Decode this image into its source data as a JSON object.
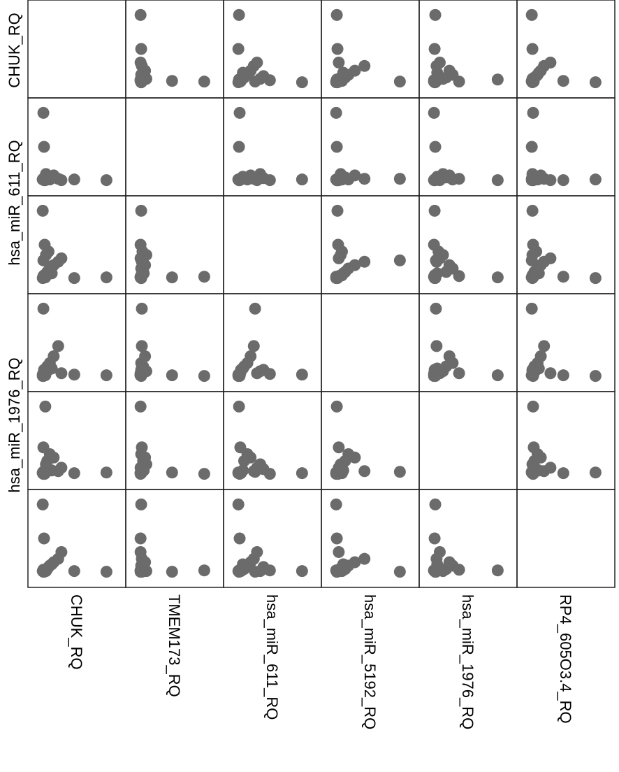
{
  "chart_data": {
    "type": "scatter_matrix",
    "color": "#6b6b6b",
    "xlim": [
      -0.22,
      1.3
    ],
    "ylim": [
      -0.22,
      1.22
    ],
    "series": [
      {
        "name": "CHUK_RQ",
        "values": [
          1.0,
          0.5,
          0.02,
          0.03,
          0.01,
          0.04,
          0.02,
          0.03,
          0.05,
          0.02,
          0.01,
          0.03,
          0.08,
          0.12,
          0.18,
          0.25,
          0.3,
          0.06,
          0.1,
          0.15
        ]
      },
      {
        "name": "TMEM173_RQ",
        "values": [
          0.01,
          0.02,
          1.0,
          0.5,
          0.02,
          0.01,
          0.03,
          0.02,
          0.01,
          0.03,
          0.02,
          0.01,
          0.05,
          0.02,
          0.08,
          0.03,
          0.01,
          0.1,
          0.04,
          0.06
        ]
      },
      {
        "name": "hsa_miR_611_RQ",
        "values": [
          0.02,
          0.01,
          0.03,
          0.02,
          1.0,
          0.5,
          0.27,
          0.05,
          0.02,
          0.04,
          0.01,
          0.03,
          0.1,
          0.15,
          0.2,
          0.25,
          0.3,
          0.35,
          0.4,
          0.08
        ]
      },
      {
        "name": "hsa_miR_5192_RQ",
        "values": [
          0.02,
          0.03,
          0.01,
          0.02,
          0.03,
          0.04,
          1.0,
          0.1,
          0.02,
          0.05,
          0.01,
          0.02,
          0.15,
          0.2,
          0.3,
          0.45,
          0.05,
          0.08,
          0.1,
          0.12
        ]
      },
      {
        "name": "hsa_miR_1976_RQ",
        "values": [
          0.03,
          0.02,
          0.01,
          0.03,
          0.02,
          0.01,
          0.04,
          0.02,
          1.0,
          0.4,
          0.03,
          0.02,
          0.2,
          0.3,
          0.25,
          0.05,
          0.1,
          0.15,
          0.08,
          0.06
        ]
      },
      {
        "name": "RP4_605O3.4_RQ",
        "values": [
          0.01,
          0.02,
          0.03,
          0.01,
          0.02,
          0.03,
          0.01,
          0.02,
          0.03,
          0.04,
          1.0,
          0.5,
          0.05,
          0.1,
          0.15,
          0.2,
          0.3,
          0.02,
          0.08,
          0.12
        ]
      }
    ]
  }
}
